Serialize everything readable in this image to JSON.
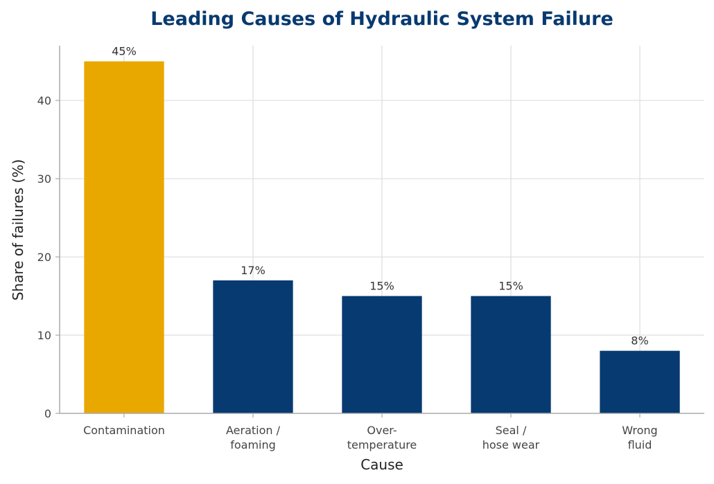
{
  "chart_data": {
    "type": "bar",
    "title": "Leading Causes of Hydraulic System Failure",
    "xlabel": "Cause",
    "ylabel": "Share of failures (%)",
    "categories": [
      [
        "Contamination"
      ],
      [
        "Aeration /",
        "foaming"
      ],
      [
        "Over-",
        "temperature"
      ],
      [
        "Seal /",
        "hose wear"
      ],
      [
        "Wrong",
        "fluid"
      ]
    ],
    "values": [
      45,
      17,
      15,
      15,
      8
    ],
    "data_labels": [
      "45%",
      "17%",
      "15%",
      "15%",
      "8%"
    ],
    "ylim": [
      0,
      47
    ],
    "yticks": [
      0,
      10,
      20,
      30,
      40
    ],
    "grid": true,
    "highlight_index": 0,
    "colors": {
      "highlight": "#E8A800",
      "bar": "#073A70",
      "title": "#073A70",
      "grid": "#DDDDDD",
      "axis": "#AAAAAA"
    }
  }
}
